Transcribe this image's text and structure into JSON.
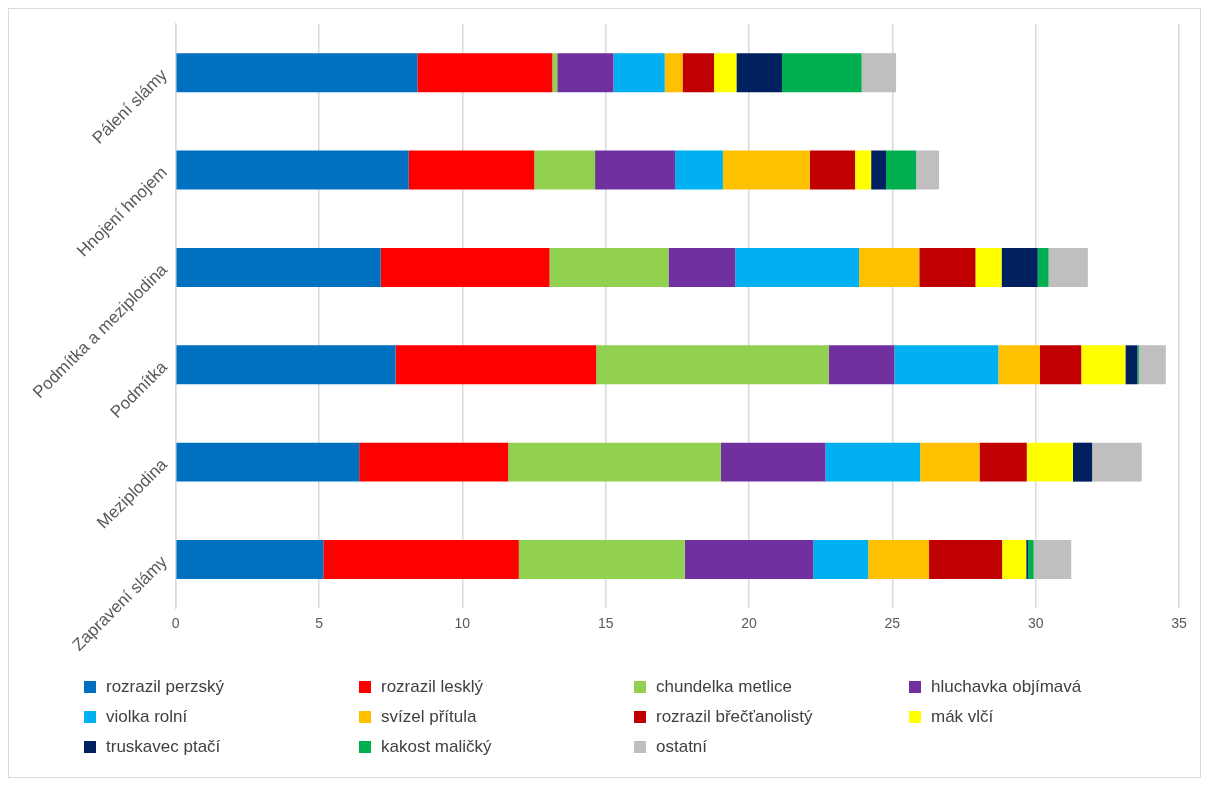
{
  "chart_data": {
    "type": "bar",
    "orientation": "horizontal",
    "stacked": true,
    "categories": [
      "Pálení slámy",
      "Hnojení hnojem",
      "Podmítka a meziplodina",
      "Podmítka",
      "Meziplodina",
      "Zapravení slámy"
    ],
    "series": [
      {
        "name": "rozrazil perzský",
        "color": "#0070c0",
        "values": [
          8.43,
          8.13,
          7.15,
          7.67,
          6.4,
          5.15
        ]
      },
      {
        "name": "rozrazil lesklý",
        "color": "#ff0000",
        "values": [
          4.71,
          4.38,
          5.89,
          7.0,
          5.2,
          6.82
        ]
      },
      {
        "name": "chundelka metlice",
        "color": "#92d050",
        "values": [
          0.17,
          2.12,
          4.15,
          8.11,
          7.42,
          5.79
        ]
      },
      {
        "name": "hluchavka objímavá",
        "color": "#7030a0",
        "values": [
          1.96,
          2.79,
          2.33,
          2.29,
          3.65,
          4.48
        ]
      },
      {
        "name": "violka rolní",
        "color": "#00b0f0",
        "values": [
          1.79,
          1.67,
          4.32,
          3.63,
          3.3,
          1.92
        ]
      },
      {
        "name": "svízel přítula",
        "color": "#ffc000",
        "values": [
          0.62,
          3.03,
          2.1,
          1.45,
          2.07,
          2.12
        ]
      },
      {
        "name": "rozrazil břečťanolistý",
        "color": "#c00000",
        "values": [
          1.1,
          1.58,
          1.96,
          1.44,
          1.65,
          2.55
        ]
      },
      {
        "name": "mák vlčí",
        "color": "#ffff00",
        "values": [
          0.78,
          0.56,
          0.91,
          1.54,
          1.61,
          0.84
        ]
      },
      {
        "name": "truskavec ptačí",
        "color": "#002060",
        "values": [
          1.59,
          0.52,
          1.26,
          0.42,
          0.67,
          0.06
        ]
      },
      {
        "name": "kakost maličký",
        "color": "#00b050",
        "values": [
          2.78,
          1.05,
          0.38,
          0.05,
          0,
          0.2
        ]
      },
      {
        "name": "ostatní",
        "color": "#bfbfbf",
        "values": [
          1.2,
          0.8,
          1.37,
          0.94,
          1.73,
          1.31
        ]
      }
    ],
    "xlim": [
      0,
      35
    ],
    "xticks": [
      0,
      5,
      10,
      15,
      20,
      25,
      30,
      35
    ],
    "grid": "x",
    "legend": "bottom"
  }
}
